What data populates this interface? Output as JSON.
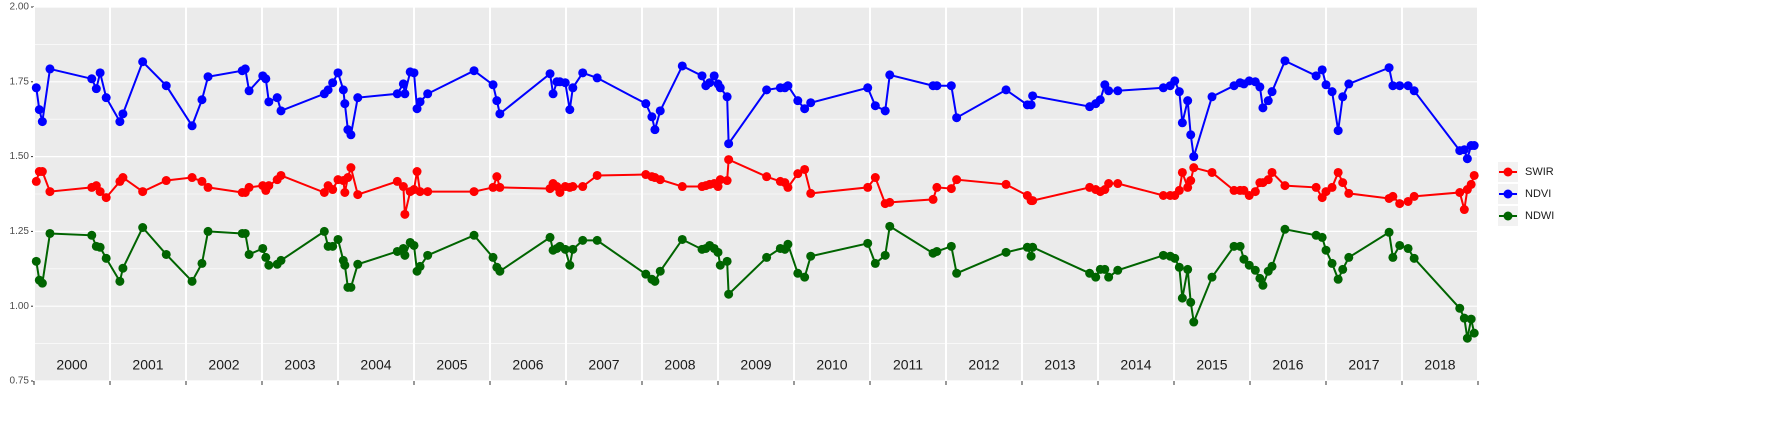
{
  "chart_data": {
    "type": "line",
    "x": [
      2000.03,
      2000.07,
      2000.11,
      2000.21,
      2000.76,
      2000.82,
      2000.87,
      2000.95,
      2001.13,
      2001.17,
      2001.43,
      2001.74,
      2002.08,
      2002.21,
      2002.29,
      2002.74,
      2002.78,
      2002.83,
      2003.01,
      2003.05,
      2003.09,
      2003.2,
      2003.25,
      2003.82,
      2003.87,
      2003.93,
      2004.0,
      2004.07,
      2004.09,
      2004.13,
      2004.17,
      2004.26,
      2004.78,
      2004.86,
      2004.88,
      2004.95,
      2005.0,
      2005.04,
      2005.08,
      2005.18,
      2005.79,
      2006.04,
      2006.09,
      2006.13,
      2006.79,
      2006.83,
      2006.88,
      2006.92,
      2006.99,
      2007.05,
      2007.09,
      2007.22,
      2007.41,
      2008.05,
      2008.13,
      2008.17,
      2008.24,
      2008.53,
      2008.79,
      2008.84,
      2008.89,
      2008.95,
      2009.0,
      2009.03,
      2009.12,
      2009.14,
      2009.64,
      2009.82,
      2009.88,
      2009.92,
      2010.05,
      2010.14,
      2010.22,
      2010.97,
      2011.07,
      2011.2,
      2011.26,
      2011.83,
      2011.88,
      2012.07,
      2012.14,
      2012.79,
      2013.07,
      2013.12,
      2013.14,
      2013.89,
      2013.97,
      2014.03,
      2014.09,
      2014.14,
      2014.26,
      2014.86,
      2014.95,
      2015.01,
      2015.07,
      2015.11,
      2015.18,
      2015.22,
      2015.26,
      2015.5,
      2015.79,
      2015.87,
      2015.92,
      2015.99,
      2016.07,
      2016.13,
      2016.17,
      2016.24,
      2016.29,
      2016.46,
      2016.87,
      2016.95,
      2017.0,
      2017.08,
      2017.16,
      2017.22,
      2017.3,
      2017.83,
      2017.88,
      2017.97,
      2018.08,
      2018.16,
      2018.76,
      2018.82,
      2018.86,
      2018.91,
      2018.95
    ],
    "series": [
      {
        "name": "SWIR",
        "color": "#ff0000",
        "values": [
          1.417,
          1.45,
          1.45,
          1.383,
          1.397,
          1.403,
          1.383,
          1.363,
          1.417,
          1.43,
          1.383,
          1.42,
          1.43,
          1.417,
          1.397,
          1.38,
          1.38,
          1.397,
          1.403,
          1.387,
          1.403,
          1.423,
          1.437,
          1.38,
          1.403,
          1.39,
          1.423,
          1.42,
          1.38,
          1.43,
          1.463,
          1.373,
          1.417,
          1.4,
          1.307,
          1.383,
          1.39,
          1.45,
          1.383,
          1.383,
          1.383,
          1.397,
          1.433,
          1.397,
          1.393,
          1.41,
          1.4,
          1.38,
          1.4,
          1.397,
          1.4,
          1.4,
          1.437,
          1.44,
          1.433,
          1.43,
          1.423,
          1.4,
          1.4,
          1.403,
          1.407,
          1.41,
          1.4,
          1.423,
          1.42,
          1.49,
          1.433,
          1.417,
          1.413,
          1.397,
          1.443,
          1.457,
          1.377,
          1.397,
          1.43,
          1.343,
          1.347,
          1.357,
          1.397,
          1.393,
          1.423,
          1.407,
          1.37,
          1.353,
          1.353,
          1.397,
          1.39,
          1.383,
          1.39,
          1.41,
          1.41,
          1.37,
          1.37,
          1.37,
          1.387,
          1.447,
          1.397,
          1.42,
          1.463,
          1.447,
          1.387,
          1.387,
          1.387,
          1.37,
          1.383,
          1.413,
          1.413,
          1.423,
          1.447,
          1.403,
          1.397,
          1.363,
          1.383,
          1.397,
          1.447,
          1.413,
          1.377,
          1.36,
          1.367,
          1.343,
          1.35,
          1.367,
          1.38,
          1.323,
          1.39,
          1.407,
          1.437
        ]
      },
      {
        "name": "NDVI",
        "color": "#0000ff",
        "values": [
          1.73,
          1.657,
          1.617,
          1.793,
          1.76,
          1.727,
          1.78,
          1.697,
          1.617,
          1.643,
          1.817,
          1.737,
          1.603,
          1.69,
          1.767,
          1.787,
          1.793,
          1.72,
          1.77,
          1.76,
          1.683,
          1.697,
          1.653,
          1.71,
          1.723,
          1.747,
          1.78,
          1.723,
          1.677,
          1.59,
          1.573,
          1.697,
          1.71,
          1.743,
          1.71,
          1.783,
          1.78,
          1.66,
          1.683,
          1.71,
          1.787,
          1.74,
          1.687,
          1.643,
          1.777,
          1.71,
          1.75,
          1.75,
          1.747,
          1.657,
          1.73,
          1.78,
          1.763,
          1.677,
          1.633,
          1.59,
          1.653,
          1.803,
          1.77,
          1.737,
          1.747,
          1.77,
          1.743,
          1.73,
          1.7,
          1.543,
          1.723,
          1.73,
          1.73,
          1.737,
          1.687,
          1.66,
          1.68,
          1.73,
          1.67,
          1.653,
          1.773,
          1.737,
          1.737,
          1.737,
          1.63,
          1.723,
          1.673,
          1.673,
          1.703,
          1.667,
          1.677,
          1.69,
          1.74,
          1.72,
          1.72,
          1.73,
          1.737,
          1.753,
          1.717,
          1.613,
          1.687,
          1.573,
          1.5,
          1.7,
          1.737,
          1.747,
          1.743,
          1.753,
          1.75,
          1.733,
          1.663,
          1.687,
          1.717,
          1.82,
          1.77,
          1.79,
          1.74,
          1.717,
          1.587,
          1.7,
          1.743,
          1.797,
          1.737,
          1.737,
          1.737,
          1.72,
          1.52,
          1.523,
          1.493,
          1.537,
          1.537
        ]
      },
      {
        "name": "NDWI",
        "color": "#006400",
        "values": [
          1.15,
          1.087,
          1.077,
          1.243,
          1.237,
          1.2,
          1.197,
          1.16,
          1.083,
          1.127,
          1.263,
          1.173,
          1.083,
          1.143,
          1.25,
          1.243,
          1.243,
          1.173,
          1.193,
          1.163,
          1.137,
          1.14,
          1.153,
          1.25,
          1.2,
          1.2,
          1.223,
          1.153,
          1.137,
          1.063,
          1.063,
          1.14,
          1.183,
          1.193,
          1.17,
          1.213,
          1.203,
          1.117,
          1.133,
          1.17,
          1.237,
          1.163,
          1.13,
          1.117,
          1.23,
          1.187,
          1.193,
          1.2,
          1.19,
          1.137,
          1.19,
          1.22,
          1.22,
          1.107,
          1.09,
          1.083,
          1.117,
          1.223,
          1.19,
          1.193,
          1.203,
          1.193,
          1.18,
          1.137,
          1.15,
          1.04,
          1.163,
          1.193,
          1.19,
          1.207,
          1.11,
          1.097,
          1.167,
          1.21,
          1.143,
          1.17,
          1.267,
          1.177,
          1.183,
          1.2,
          1.11,
          1.18,
          1.197,
          1.167,
          1.197,
          1.11,
          1.097,
          1.123,
          1.123,
          1.097,
          1.12,
          1.17,
          1.167,
          1.16,
          1.13,
          1.027,
          1.123,
          1.013,
          0.947,
          1.097,
          1.2,
          1.2,
          1.157,
          1.137,
          1.12,
          1.093,
          1.07,
          1.117,
          1.133,
          1.257,
          1.237,
          1.23,
          1.187,
          1.143,
          1.09,
          1.123,
          1.163,
          1.247,
          1.163,
          1.203,
          1.193,
          1.16,
          0.993,
          0.96,
          0.893,
          0.957,
          0.91
        ]
      }
    ],
    "xlim": [
      2000,
      2019
    ],
    "ylim": [
      0.75,
      2.0
    ],
    "yticks": [
      {
        "value": 0.75,
        "label": "0.75"
      },
      {
        "value": 1,
        "label": "1.00"
      },
      {
        "value": 1.25,
        "label": "1.25"
      },
      {
        "value": 1.5,
        "label": "1.50"
      },
      {
        "value": 1.75,
        "label": "1.75"
      },
      {
        "value": 2,
        "label": "2.00"
      }
    ],
    "xticks": [
      {
        "value": 2000.5,
        "label": "2000"
      },
      {
        "value": 2001.5,
        "label": "2001"
      },
      {
        "value": 2002.5,
        "label": "2002"
      },
      {
        "value": 2003.5,
        "label": "2003"
      },
      {
        "value": 2004.5,
        "label": "2004"
      },
      {
        "value": 2005.5,
        "label": "2005"
      },
      {
        "value": 2006.5,
        "label": "2006"
      },
      {
        "value": 2007.5,
        "label": "2007"
      },
      {
        "value": 2008.5,
        "label": "2008"
      },
      {
        "value": 2009.5,
        "label": "2009"
      },
      {
        "value": 2010.5,
        "label": "2010"
      },
      {
        "value": 2011.5,
        "label": "2011"
      },
      {
        "value": 2012.5,
        "label": "2012"
      },
      {
        "value": 2013.5,
        "label": "2013"
      },
      {
        "value": 2014.5,
        "label": "2014"
      },
      {
        "value": 2015.5,
        "label": "2015"
      },
      {
        "value": 2016.5,
        "label": "2016"
      },
      {
        "value": 2017.5,
        "label": "2017"
      },
      {
        "value": 2018.5,
        "label": "2018"
      }
    ],
    "year_breaks": [
      2000,
      2001,
      2002,
      2003,
      2004,
      2005,
      2006,
      2007,
      2008,
      2009,
      2010,
      2011,
      2012,
      2013,
      2014,
      2015,
      2016,
      2017,
      2018,
      2019
    ],
    "grid": true,
    "legend": "right"
  }
}
